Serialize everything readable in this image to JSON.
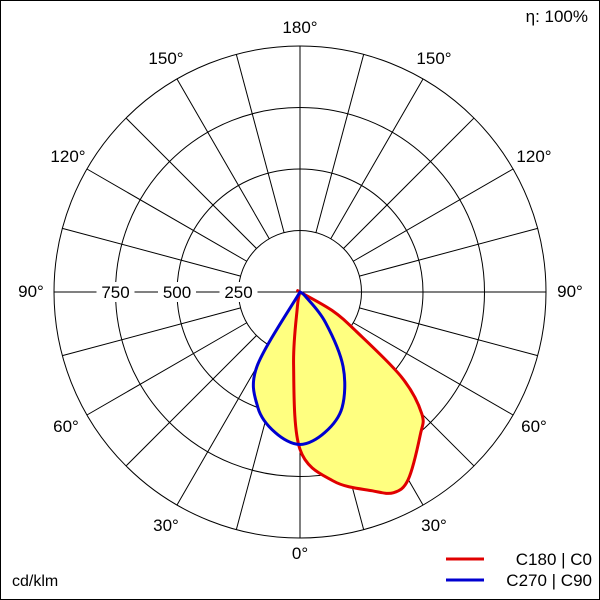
{
  "chart_data": {
    "type": "polar",
    "efficiency_label": "η: 100%",
    "unit_label": "cd/klm",
    "radial_ticks": [
      "250",
      "500",
      "750"
    ],
    "radial_ticks_values": [
      250,
      500,
      750
    ],
    "radial_max": 1000,
    "angle_labels": {
      "top": "180°",
      "upper_left": "150°",
      "upper_right": "150°",
      "mid_upper_left": "120°",
      "mid_upper_right": "120°",
      "left": "90°",
      "right": "90°",
      "mid_lower_left": "60°",
      "mid_lower_right": "60°",
      "lower_left": "30°",
      "lower_right": "30°",
      "bottom": "0°"
    },
    "grid": true,
    "series": [
      {
        "name": "C180 | C0",
        "color": "#e00000",
        "fill": "#ffff80",
        "points": [
          {
            "angle": -10,
            "value": 60
          },
          {
            "angle": -5,
            "value": 300
          },
          {
            "angle": 0,
            "value": 640
          },
          {
            "angle": 10,
            "value": 780
          },
          {
            "angle": 20,
            "value": 860
          },
          {
            "angle": 25,
            "value": 900
          },
          {
            "angle": 30,
            "value": 880
          },
          {
            "angle": 40,
            "value": 760
          },
          {
            "angle": 45,
            "value": 700
          },
          {
            "angle": 50,
            "value": 540
          },
          {
            "angle": 55,
            "value": 280
          },
          {
            "angle": 60,
            "value": 150
          },
          {
            "angle": 80,
            "value": 0
          }
        ]
      },
      {
        "name": "C270 | C90",
        "color": "#0000d0",
        "fill": "#ffff80",
        "points": [
          {
            "angle": -30,
            "value": 350
          },
          {
            "angle": -20,
            "value": 500
          },
          {
            "angle": -10,
            "value": 580
          },
          {
            "angle": 0,
            "value": 620
          },
          {
            "angle": 10,
            "value": 580
          },
          {
            "angle": 20,
            "value": 500
          },
          {
            "angle": 30,
            "value": 350
          },
          {
            "angle": 40,
            "value": 160
          },
          {
            "angle": 50,
            "value": 30
          }
        ]
      }
    ],
    "legend": [
      {
        "label": "C180 | C0",
        "color": "#e00000"
      },
      {
        "label": "C270 | C90",
        "color": "#0000d0"
      }
    ],
    "legend_position": "bottom-right"
  }
}
